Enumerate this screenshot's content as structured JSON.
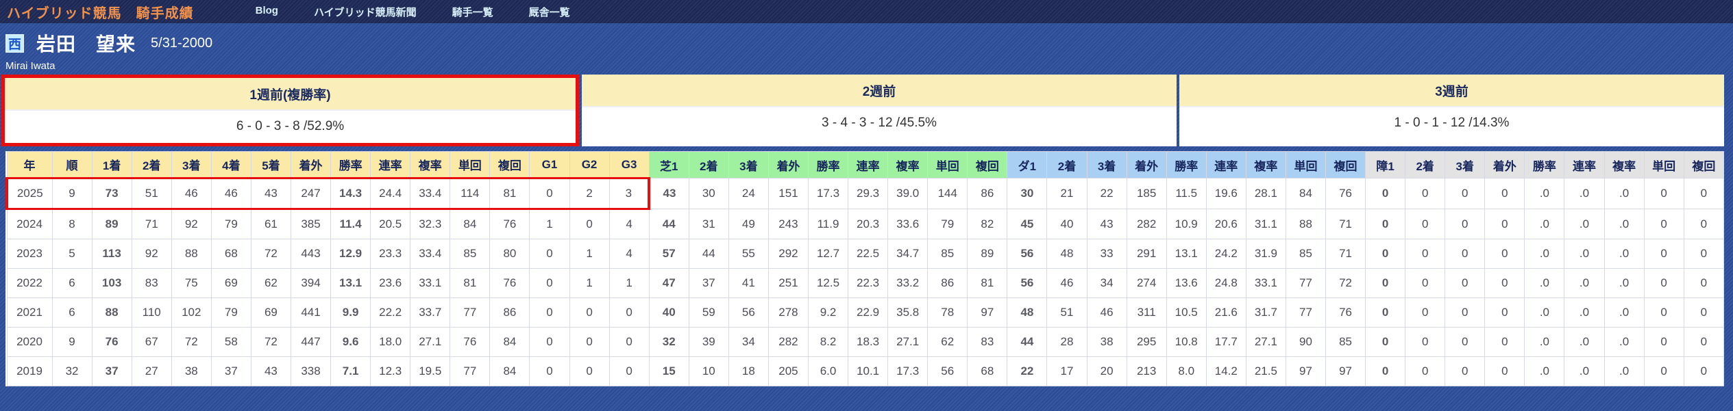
{
  "nav": {
    "title": "ハイブリッド競馬　騎手成績",
    "links": [
      {
        "label": "Blog"
      },
      {
        "label": "ハイブリッド競馬新聞"
      },
      {
        "label": "騎手一覧"
      },
      {
        "label": "厩舎一覧"
      }
    ]
  },
  "jockey": {
    "region_badge": "西",
    "name": "岩田　望来",
    "birthdate": "5/31-2000",
    "name_romaji": "Mirai Iwata"
  },
  "summary": {
    "boxes": [
      {
        "label": "1週前(複勝率)",
        "value": "6 - 0 - 3 - 8 /52.9%",
        "highlighted": true
      },
      {
        "label": "2週前",
        "value": "3 - 4 - 3 - 12 /45.5%",
        "highlighted": false
      },
      {
        "label": "3週前",
        "value": "1 - 0 - 1 - 12 /14.3%",
        "highlighted": false
      }
    ]
  },
  "colors": {
    "nav_background": "#1e2b58",
    "nav_title_orange": "#f0914d",
    "page_background_blue": "#2e509c",
    "highlight_red": "#e60f0f",
    "header_yellow": "#fbe9a6",
    "header_green": "#9ff19f",
    "header_blue": "#a9cff2",
    "header_grey": "#e3e3e3",
    "summary_header_yellow": "#faefba"
  },
  "table": {
    "groups": [
      {
        "name": "overall",
        "labels": [
          "年",
          "順",
          "1着",
          "2着",
          "3着",
          "4着",
          "5着",
          "着外",
          "勝率",
          "連率",
          "複率",
          "単回",
          "複回",
          "G1",
          "G2",
          "G3"
        ]
      },
      {
        "name": "turf",
        "labels": [
          "芝1",
          "2着",
          "3着",
          "着外",
          "勝率",
          "連率",
          "複率",
          "単回",
          "複回"
        ]
      },
      {
        "name": "dirt",
        "labels": [
          "ダ1",
          "2着",
          "3着",
          "着外",
          "勝率",
          "連率",
          "複率",
          "単回",
          "複回"
        ]
      },
      {
        "name": "jump",
        "labels": [
          "障1",
          "2着",
          "3着",
          "着外",
          "勝率",
          "連率",
          "複率",
          "単回",
          "複回"
        ]
      }
    ],
    "bold_columns": [
      2,
      8,
      16,
      25,
      34
    ],
    "highlight_span": 16,
    "rows": [
      {
        "highlighted": true,
        "cells": [
          "2025",
          "9",
          "73",
          "51",
          "46",
          "46",
          "43",
          "247",
          "14.3",
          "24.4",
          "33.4",
          "114",
          "81",
          "0",
          "2",
          "3",
          "43",
          "30",
          "24",
          "151",
          "17.3",
          "29.3",
          "39.0",
          "144",
          "86",
          "30",
          "21",
          "22",
          "185",
          "11.5",
          "19.6",
          "28.1",
          "84",
          "76",
          "0",
          "0",
          "0",
          "0",
          ".0",
          ".0",
          ".0",
          "0",
          "0"
        ]
      },
      {
        "highlighted": false,
        "cells": [
          "2024",
          "8",
          "89",
          "71",
          "92",
          "79",
          "61",
          "385",
          "11.4",
          "20.5",
          "32.3",
          "84",
          "76",
          "1",
          "0",
          "4",
          "44",
          "31",
          "49",
          "243",
          "11.9",
          "20.3",
          "33.6",
          "79",
          "82",
          "45",
          "40",
          "43",
          "282",
          "10.9",
          "20.6",
          "31.1",
          "88",
          "71",
          "0",
          "0",
          "0",
          "0",
          ".0",
          ".0",
          ".0",
          "0",
          "0"
        ]
      },
      {
        "highlighted": false,
        "cells": [
          "2023",
          "5",
          "113",
          "92",
          "88",
          "68",
          "72",
          "443",
          "12.9",
          "23.3",
          "33.4",
          "85",
          "80",
          "0",
          "1",
          "4",
          "57",
          "44",
          "55",
          "292",
          "12.7",
          "22.5",
          "34.7",
          "85",
          "89",
          "56",
          "48",
          "33",
          "291",
          "13.1",
          "24.2",
          "31.9",
          "85",
          "71",
          "0",
          "0",
          "0",
          "0",
          ".0",
          ".0",
          ".0",
          "0",
          "0"
        ]
      },
      {
        "highlighted": false,
        "cells": [
          "2022",
          "6",
          "103",
          "83",
          "75",
          "69",
          "62",
          "394",
          "13.1",
          "23.6",
          "33.1",
          "81",
          "76",
          "0",
          "1",
          "1",
          "47",
          "37",
          "41",
          "251",
          "12.5",
          "22.3",
          "33.2",
          "86",
          "81",
          "56",
          "46",
          "34",
          "274",
          "13.6",
          "24.8",
          "33.1",
          "77",
          "72",
          "0",
          "0",
          "0",
          "0",
          ".0",
          ".0",
          ".0",
          "0",
          "0"
        ]
      },
      {
        "highlighted": false,
        "cells": [
          "2021",
          "6",
          "88",
          "110",
          "102",
          "79",
          "69",
          "441",
          "9.9",
          "22.2",
          "33.7",
          "77",
          "86",
          "0",
          "0",
          "0",
          "40",
          "59",
          "56",
          "278",
          "9.2",
          "22.9",
          "35.8",
          "78",
          "97",
          "48",
          "51",
          "46",
          "311",
          "10.5",
          "21.6",
          "31.7",
          "77",
          "76",
          "0",
          "0",
          "0",
          "0",
          ".0",
          ".0",
          ".0",
          "0",
          "0"
        ]
      },
      {
        "highlighted": false,
        "cells": [
          "2020",
          "9",
          "76",
          "67",
          "72",
          "58",
          "72",
          "447",
          "9.6",
          "18.0",
          "27.1",
          "76",
          "84",
          "0",
          "0",
          "0",
          "32",
          "39",
          "34",
          "282",
          "8.2",
          "18.3",
          "27.1",
          "62",
          "83",
          "44",
          "28",
          "38",
          "295",
          "10.8",
          "17.7",
          "27.1",
          "90",
          "85",
          "0",
          "0",
          "0",
          "0",
          ".0",
          ".0",
          ".0",
          "0",
          "0"
        ]
      },
      {
        "highlighted": false,
        "cells": [
          "2019",
          "32",
          "37",
          "27",
          "38",
          "37",
          "43",
          "338",
          "7.1",
          "12.3",
          "19.5",
          "77",
          "84",
          "0",
          "0",
          "0",
          "15",
          "10",
          "18",
          "205",
          "6.0",
          "10.1",
          "17.3",
          "56",
          "68",
          "22",
          "17",
          "20",
          "213",
          "8.0",
          "14.2",
          "21.5",
          "97",
          "97",
          "0",
          "0",
          "0",
          "0",
          ".0",
          ".0",
          ".0",
          "0",
          "0"
        ]
      }
    ]
  }
}
